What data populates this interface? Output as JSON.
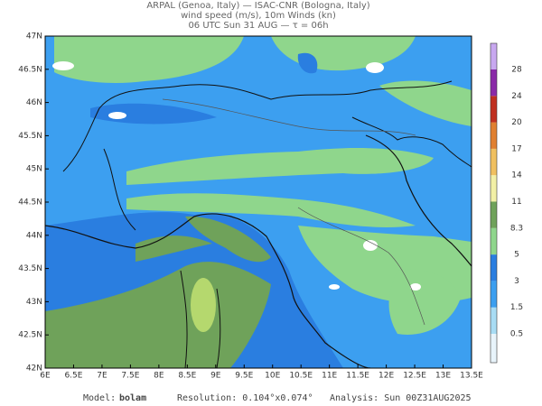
{
  "header": {
    "line1": "ARPAL (Genoa, Italy)  —  ISAC-CNR (Bologna, Italy)",
    "line2": "wind speed (m/s), 10m Winds (kn)",
    "line3": "06 UTC Sun 31 AUG  —  τ = 06h"
  },
  "lat_labels": [
    "47N",
    "46.5N",
    "46N",
    "45.5N",
    "45N",
    "44.5N",
    "44N",
    "43.5N",
    "43N",
    "42.5N",
    "42N"
  ],
  "lon_labels": [
    "6E",
    "6.5E",
    "7E",
    "7.5E",
    "8E",
    "8.5E",
    "9E",
    "9.5E",
    "10E",
    "10.5E",
    "11E",
    "11.5E",
    "12E",
    "12.5E",
    "13E",
    "13.5E"
  ],
  "colorbar": {
    "labels": [
      0.5,
      1.5,
      3,
      5,
      8.3,
      11,
      14,
      17,
      20,
      24,
      28
    ]
  },
  "footer": {
    "model_label": "Model:",
    "model": "bolam",
    "resolution": "Resolution: 0.104°x0.074°",
    "analysis": "Analysis: Sun 00Z31AUG2025"
  }
}
